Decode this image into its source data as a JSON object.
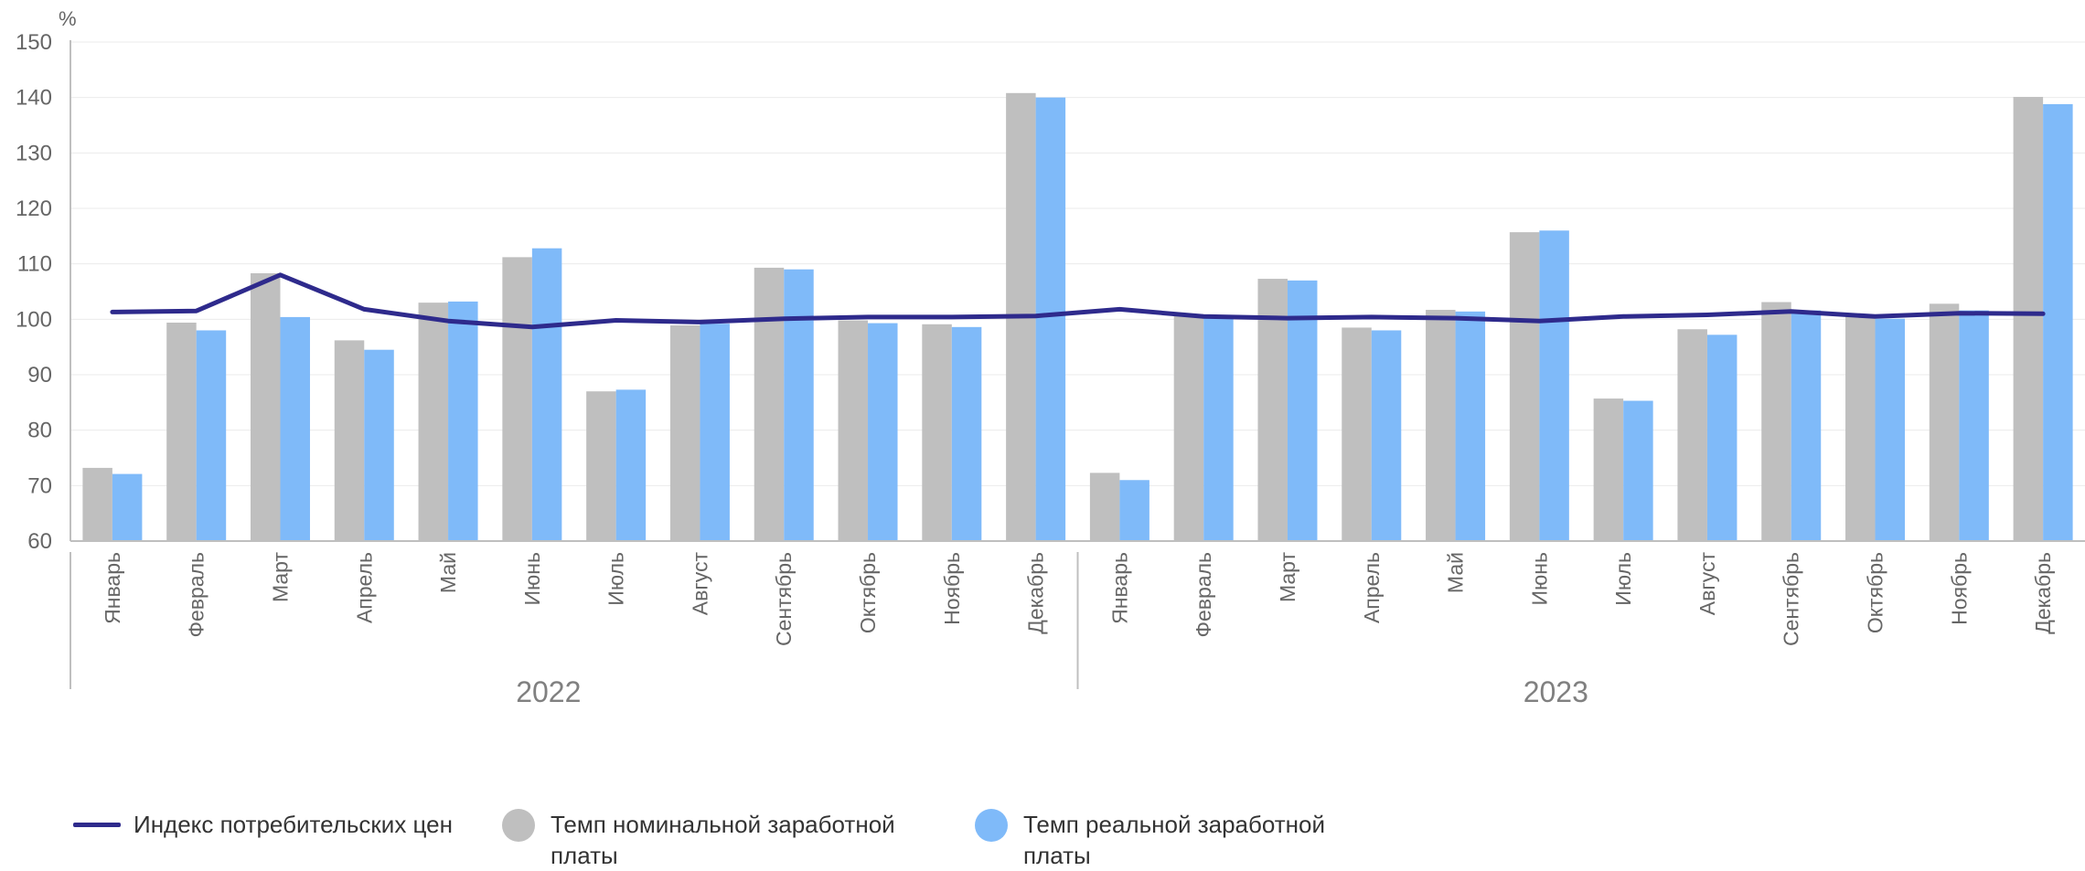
{
  "chart_data": {
    "type": "bar",
    "y_unit_label": "%",
    "ylim": [
      60,
      150
    ],
    "yticks": [
      60,
      70,
      80,
      90,
      100,
      110,
      120,
      130,
      140,
      150
    ],
    "grid": true,
    "categories": [
      "Январь",
      "Февраль",
      "Март",
      "Апрель",
      "Май",
      "Июнь",
      "Июль",
      "Август",
      "Сентябрь",
      "Октябрь",
      "Ноябрь",
      "Декабрь",
      "Январь",
      "Февраль",
      "Март",
      "Апрель",
      "Май",
      "Июнь",
      "Июль",
      "Август",
      "Сентябрь",
      "Октябрь",
      "Ноябрь",
      "Декабрь"
    ],
    "groups": [
      {
        "label": "2022",
        "count": 12
      },
      {
        "label": "2023",
        "count": 12
      }
    ],
    "series": [
      {
        "name": "Темп номинальной заработной платы",
        "kind": "bar",
        "color": "#bfbfbf",
        "values": [
          73.2,
          99.4,
          108.3,
          96.2,
          103.0,
          111.2,
          87.0,
          98.9,
          109.3,
          99.8,
          99.1,
          140.8,
          72.3,
          100.9,
          107.3,
          98.5,
          101.7,
          115.7,
          85.7,
          98.2,
          103.1,
          100.5,
          102.8,
          140.1
        ]
      },
      {
        "name": "Темп реальной заработной платы",
        "kind": "bar",
        "color": "#7fbaf9",
        "values": [
          72.1,
          98.0,
          100.4,
          94.5,
          103.2,
          112.8,
          87.3,
          99.2,
          109.0,
          99.3,
          98.6,
          140.0,
          71.0,
          100.5,
          107.0,
          98.0,
          101.4,
          116.0,
          85.3,
          97.2,
          101.6,
          100.1,
          101.6,
          138.8
        ]
      },
      {
        "name": "Индекс потребительских цен",
        "kind": "line",
        "color": "#2e2a8c",
        "values": [
          101.3,
          101.5,
          108.0,
          101.8,
          99.7,
          98.6,
          99.8,
          99.5,
          100.1,
          100.4,
          100.4,
          100.6,
          101.8,
          100.5,
          100.2,
          100.4,
          100.2,
          99.7,
          100.5,
          100.8,
          101.4,
          100.5,
          101.1,
          101.0
        ]
      }
    ],
    "legend": {
      "placement": "bottom-left",
      "items": [
        {
          "label": "Индекс потребительских цен",
          "marker": "line",
          "color": "#2e2a8c"
        },
        {
          "label": "Темп номинальной заработной платы",
          "marker": "circle",
          "color": "#bfbfbf"
        },
        {
          "label": "Темп реальной заработной платы",
          "marker": "circle",
          "color": "#7fbaf9"
        }
      ]
    }
  }
}
